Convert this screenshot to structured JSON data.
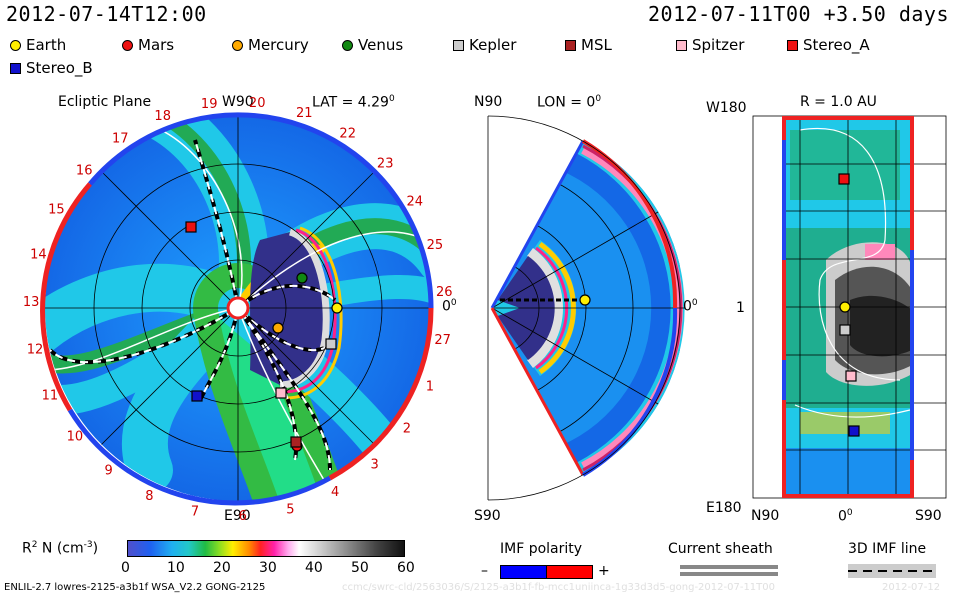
{
  "header": {
    "left_time": "2012-07-14T12:00",
    "right_time": "2012-07-11T00 +3.50 days"
  },
  "legend": [
    {
      "name": "Earth",
      "color": "#ffee00",
      "shape": "circle"
    },
    {
      "name": "Mars",
      "color": "#ee1111",
      "shape": "circle"
    },
    {
      "name": "Mercury",
      "color": "#ffaa00",
      "shape": "circle"
    },
    {
      "name": "Venus",
      "color": "#118811",
      "shape": "circle"
    },
    {
      "name": "Kepler",
      "color": "#cccccc",
      "shape": "square"
    },
    {
      "name": "MSL",
      "color": "#aa2222",
      "shape": "square"
    },
    {
      "name": "Spitzer",
      "color": "#ffbbcc",
      "shape": "square"
    },
    {
      "name": "Stereo_A",
      "color": "#ee1111",
      "shape": "square"
    },
    {
      "name": "Stereo_B",
      "color": "#1111cc",
      "shape": "square"
    }
  ],
  "panels": {
    "ecliptic": {
      "title": "Ecliptic Plane",
      "top_label": "W90",
      "bottom_label": "E90",
      "lat_label": "LAT = 4.29",
      "lat_sup": "0",
      "right_label": "0",
      "right_sup": "0",
      "ticks": [
        "19",
        "20",
        "21",
        "22",
        "23",
        "24",
        "25",
        "26",
        "27",
        "1",
        "2",
        "3",
        "4",
        "5",
        "6",
        "7",
        "8",
        "9",
        "10",
        "11",
        "12",
        "13",
        "14",
        "15",
        "16",
        "17",
        "18"
      ]
    },
    "meridional": {
      "top_label": "N90",
      "bottom_label": "S90",
      "lon_label": "LON = 0",
      "lon_sup": "0",
      "right_label": "0",
      "right_sup": "0"
    },
    "radial": {
      "title": "R = 1.0 AU",
      "top_left": "W180",
      "mid_left": "1",
      "bottom_left": "E180",
      "x_left": "N90",
      "x_mid": "0",
      "x_mid_sup": "0",
      "x_right": "S90"
    }
  },
  "colorbar": {
    "label": "R",
    "label_sup": "2",
    "label_rest": " N (cm",
    "label_exp": "-3",
    "label_end": ")",
    "ticks": [
      "0",
      "10",
      "20",
      "30",
      "40",
      "50",
      "60"
    ]
  },
  "imf_polarity": {
    "title": "IMF polarity",
    "minus": "–",
    "plus": "+",
    "neg_color": "#0000ff",
    "pos_color": "#ff0000"
  },
  "current_sheath": {
    "title": "Current sheath"
  },
  "imf_line": {
    "title": "3D IMF line"
  },
  "footer": {
    "model": "ENLIL-2.7 lowres-2125-a3b1f WSA_V2.2 GONG-2125",
    "watermark": "ccmc/swrc-cld/2563036/S/2125-a3b1f-fb-mcc1uniinca-1g33d3d5-gong-2012-07-11T00",
    "date_stub": "2012-07-12"
  }
}
